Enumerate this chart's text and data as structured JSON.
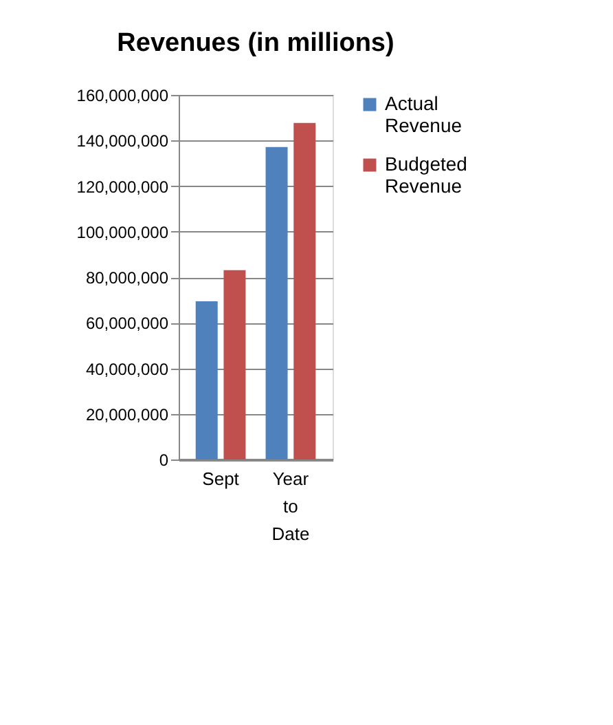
{
  "chart_data": {
    "type": "bar",
    "title": "Revenues (in millions)",
    "categories": [
      "Sept",
      "Year to Date"
    ],
    "series": [
      {
        "name": "Actual Revenue",
        "color": "#4f81bd",
        "values": [
          69400000,
          137100000
        ]
      },
      {
        "name": "Budgeted Revenue",
        "color": "#c0504d",
        "values": [
          83100000,
          147700000
        ]
      }
    ],
    "ylim": [
      0,
      160000000
    ],
    "yticks": [
      0,
      {
        "value": 20000000,
        "label": "20,000,000"
      },
      {
        "value": 40000000,
        "label": "40,000,000"
      },
      {
        "value": 60000000,
        "label": "60,000,000"
      },
      {
        "value": 80000000,
        "label": "80,000,000"
      },
      {
        "value": 100000000,
        "label": "100,000,000"
      },
      {
        "value": 120000000,
        "label": "120,000,000"
      },
      {
        "value": 140000000,
        "label": "140,000,000"
      },
      {
        "value": 160000000,
        "label": "160,000,000"
      }
    ],
    "grid": "y",
    "legend": "right"
  }
}
